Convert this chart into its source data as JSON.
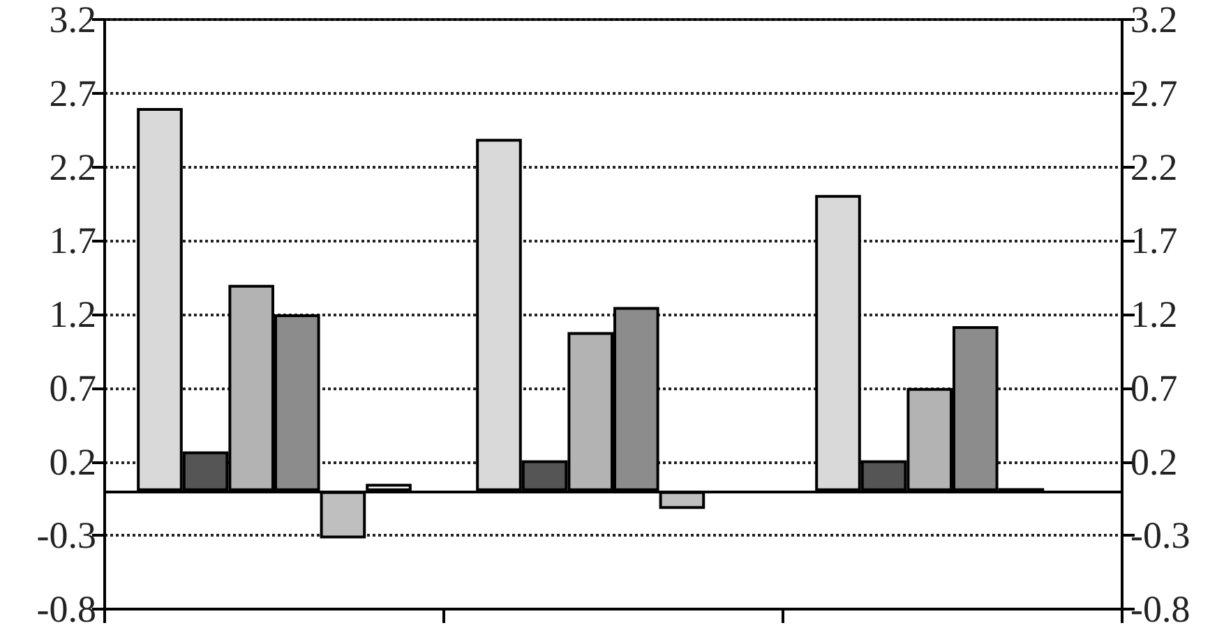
{
  "chart_data": {
    "type": "bar",
    "categories": [
      null,
      null,
      null
    ],
    "series": [
      {
        "color": "#d9d9d9",
        "values": [
          2.6,
          2.39,
          2.01
        ]
      },
      {
        "color": "#555555",
        "values": [
          0.27,
          0.21,
          0.21
        ]
      },
      {
        "color": "#b3b3b3",
        "values": [
          1.4,
          1.08,
          0.7
        ]
      },
      {
        "color": "#8c8c8c",
        "values": [
          1.2,
          1.25,
          1.12
        ]
      },
      {
        "color": "#bfbfbf",
        "values": [
          -0.32,
          -0.12,
          0.02
        ]
      },
      {
        "color": "#ffffff",
        "values": [
          0.05,
          null,
          null
        ]
      }
    ],
    "ylim": [
      -0.8,
      3.2
    ],
    "yticks": [
      -0.8,
      -0.3,
      0.2,
      0.7,
      1.2,
      1.7,
      2.2,
      2.7,
      3.2
    ],
    "y2lim": [
      -0.8,
      3.2
    ],
    "y2ticks": [
      -0.8,
      -0.3,
      0.2,
      0.7,
      1.2,
      1.7,
      2.2,
      2.7,
      3.2
    ],
    "grid": "y",
    "ref_lines": [
      {
        "axis": "y",
        "value": 0,
        "color": "#000000",
        "line_style": "solid"
      }
    ]
  }
}
